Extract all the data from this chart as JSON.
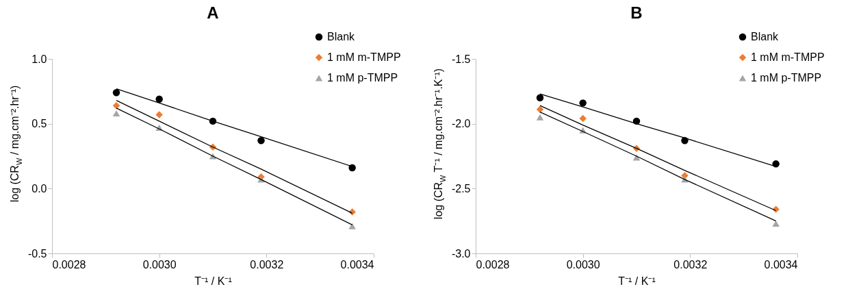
{
  "chart_data": [
    {
      "type": "scatter",
      "title": "A",
      "xlabel": "T⁻¹ / K⁻¹",
      "ylabel": "log (CR$_{W}$ / mg.cm⁻².hr⁻¹)",
      "x": [
        0.00292,
        0.003,
        0.0031,
        0.00319,
        0.00336
      ],
      "xlim": [
        0.0028,
        0.0034
      ],
      "xticks": [
        0.0028,
        {
          "value": 0.003,
          "label": "0.0030"
        },
        0.0032,
        0.0034
      ],
      "ylim": [
        -0.5,
        1.0
      ],
      "yticks": [
        -0.5,
        {
          "value": 0,
          "label": "0.0"
        },
        0.5,
        {
          "value": 1,
          "label": "1.0"
        }
      ],
      "grid": false,
      "legend": "top right",
      "series": [
        {
          "name": "Blank",
          "color": "#000000",
          "marker": "circle",
          "values": [
            0.74,
            0.69,
            0.52,
            0.37,
            0.16
          ]
        },
        {
          "name": "1 mM m-TMPP",
          "color": "#ed7d31",
          "marker": "diamond",
          "values": [
            0.64,
            0.57,
            0.32,
            0.09,
            -0.18
          ]
        },
        {
          "name": "1 mM p-TMPP",
          "color": "#a5a5a5",
          "marker": "triangle",
          "values": [
            0.58,
            0.47,
            0.25,
            0.07,
            -0.29
          ]
        },
        {
          "type": "line",
          "color": "#000000",
          "marker": "none",
          "values": [
            0.77,
            0.66,
            0.52,
            0.4,
            0.17
          ]
        },
        {
          "type": "line",
          "color": "#000000",
          "marker": "none",
          "values": [
            0.68,
            0.52,
            0.32,
            0.15,
            -0.19
          ]
        },
        {
          "type": "line",
          "color": "#000000",
          "marker": "none",
          "values": [
            0.62,
            0.46,
            0.25,
            0.07,
            -0.28
          ]
        }
      ]
    },
    {
      "type": "scatter",
      "title": "B",
      "xlabel": "T⁻¹ / K⁻¹",
      "ylabel": "log (CR$_{W}$ T⁻¹ / mg.cm⁻².hr⁻¹.K⁻¹)",
      "x": [
        0.00292,
        0.003,
        0.0031,
        0.00319,
        0.00336
      ],
      "xlim": [
        0.0028,
        0.0034
      ],
      "xticks": [
        0.0028,
        {
          "value": 0.003,
          "label": "0.0030"
        },
        0.0032,
        0.0034
      ],
      "ylim": [
        -3.0,
        -1.5
      ],
      "yticks": [
        {
          "value": -3,
          "label": "-3.0"
        },
        -2.5,
        {
          "value": -2,
          "label": "-2.0"
        },
        -1.5
      ],
      "grid": false,
      "legend": "top right",
      "series": [
        {
          "name": "Blank",
          "color": "#000000",
          "marker": "circle",
          "values": [
            -1.8,
            -1.84,
            -1.98,
            -2.13,
            -2.31
          ]
        },
        {
          "name": "1 mM m-TMPP",
          "color": "#ed7d31",
          "marker": "diamond",
          "values": [
            -1.89,
            -1.96,
            -2.19,
            -2.4,
            -2.66
          ]
        },
        {
          "name": "1 mM p-TMPP",
          "color": "#a5a5a5",
          "marker": "triangle",
          "values": [
            -1.95,
            -2.05,
            -2.26,
            -2.43,
            -2.77
          ]
        },
        {
          "type": "line",
          "color": "#000000",
          "marker": "none",
          "values": [
            -1.77,
            -1.87,
            -2.0,
            -2.11,
            -2.33
          ]
        },
        {
          "type": "line",
          "color": "#000000",
          "marker": "none",
          "values": [
            -1.86,
            -2.01,
            -2.19,
            -2.36,
            -2.67
          ]
        },
        {
          "type": "line",
          "color": "#000000",
          "marker": "none",
          "values": [
            -1.91,
            -2.06,
            -2.25,
            -2.43,
            -2.75
          ]
        }
      ]
    }
  ]
}
